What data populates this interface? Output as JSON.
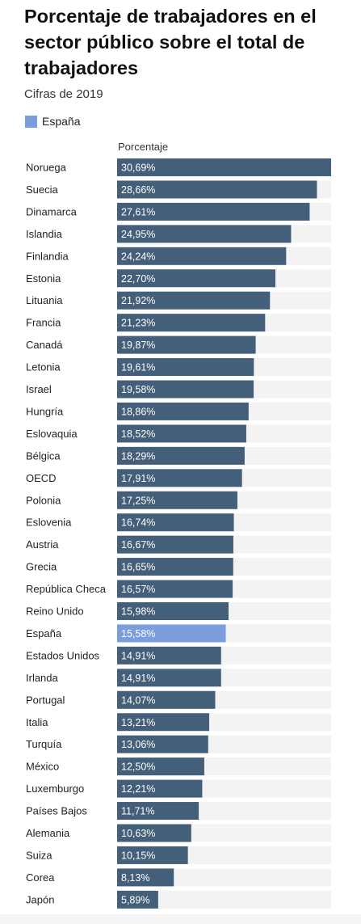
{
  "title": "Porcentaje de trabajadores en el sector público sobre el total de trabajadores",
  "subtitle": "Cifras de 2019",
  "legend": {
    "label": "España",
    "color": "#7b9ddb"
  },
  "column_header": "Porcentaje",
  "colors": {
    "bar": "#445f79",
    "highlight": "#7b9ddb",
    "track": "#f3f3f3"
  },
  "chart_data": {
    "type": "bar",
    "orientation": "horizontal",
    "title": "Porcentaje de trabajadores en el sector público sobre el total de trabajadores",
    "subtitle": "Cifras de 2019",
    "xlabel": "Porcentaje",
    "highlight": "España",
    "xlim": [
      0,
      30.69
    ],
    "categories": [
      "Noruega",
      "Suecia",
      "Dinamarca",
      "Islandia",
      "Finlandia",
      "Estonia",
      "Lituania",
      "Francia",
      "Canadá",
      "Letonia",
      "Israel",
      "Hungría",
      "Eslovaquia",
      "Bélgica",
      "OECD",
      "Polonia",
      "Eslovenia",
      "Austria",
      "Grecia",
      "República Checa",
      "Reino Unido",
      "España",
      "Estados Unidos",
      "Irlanda",
      "Portugal",
      "Italia",
      "Turquía",
      "México",
      "Luxemburgo",
      "Países Bajos",
      "Alemania",
      "Suiza",
      "Corea",
      "Japón"
    ],
    "values": [
      30.69,
      28.66,
      27.61,
      24.95,
      24.24,
      22.7,
      21.92,
      21.23,
      19.87,
      19.61,
      19.58,
      18.86,
      18.52,
      18.29,
      17.91,
      17.25,
      16.74,
      16.67,
      16.65,
      16.57,
      15.98,
      15.58,
      14.91,
      14.91,
      14.07,
      13.21,
      13.06,
      12.5,
      12.21,
      11.71,
      10.63,
      10.15,
      8.13,
      5.89
    ],
    "value_labels": [
      "30,69%",
      "28,66%",
      "27,61%",
      "24,95%",
      "24,24%",
      "22,70%",
      "21,92%",
      "21,23%",
      "19,87%",
      "19,61%",
      "19,58%",
      "18,86%",
      "18,52%",
      "18,29%",
      "17,91%",
      "17,25%",
      "16,74%",
      "16,67%",
      "16,65%",
      "16,57%",
      "15,98%",
      "15,58%",
      "14,91%",
      "14,91%",
      "14,07%",
      "13,21%",
      "13,06%",
      "12,50%",
      "12,21%",
      "11,71%",
      "10,63%",
      "10,15%",
      "8,13%",
      "5,89%"
    ]
  }
}
